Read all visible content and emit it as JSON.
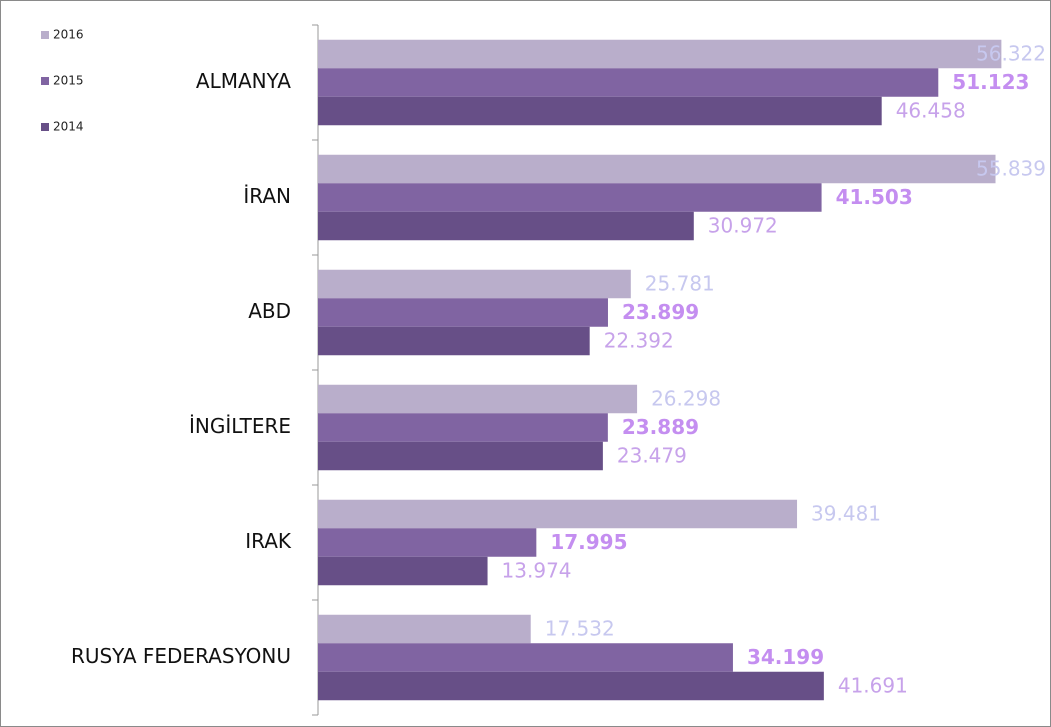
{
  "chart_data": {
    "type": "hbar",
    "categories": [
      "ALMANYA",
      "İRAN",
      "ABD",
      "İNGİLTERE",
      "IRAK",
      "RUSYA FEDERASYONU"
    ],
    "series": [
      {
        "name": "2016",
        "color": "#b9aecb",
        "values": [
          56.322,
          55.839,
          25.781,
          26.298,
          39.481,
          17.532
        ]
      },
      {
        "name": "2015",
        "color": "#8064a2",
        "values": [
          51.123,
          41.503,
          23.899,
          23.889,
          17.995,
          34.199
        ]
      },
      {
        "name": "2014",
        "color": "#674f87",
        "values": [
          46.458,
          30.972,
          22.392,
          23.479,
          13.974,
          41.691
        ]
      }
    ],
    "xlim": [
      0,
      60
    ],
    "legend": "top-left"
  }
}
